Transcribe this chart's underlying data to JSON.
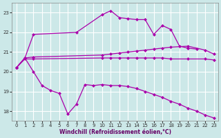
{
  "background_color": "#cce8e8",
  "grid_color": "#ffffff",
  "line_color": "#aa00aa",
  "xlabel": "Windchill (Refroidissement éolien,°C)",
  "xlim": [
    -0.5,
    23.5
  ],
  "ylim": [
    17.5,
    23.5
  ],
  "yticks": [
    18,
    19,
    20,
    21,
    22,
    23
  ],
  "xticks": [
    0,
    1,
    2,
    3,
    4,
    5,
    6,
    7,
    8,
    9,
    10,
    11,
    12,
    13,
    14,
    15,
    16,
    17,
    18,
    19,
    20,
    21,
    22,
    23
  ],
  "series": [
    {
      "x": [
        0,
        1,
        2,
        7,
        10,
        11,
        12,
        13,
        14,
        15,
        16,
        17,
        18,
        19,
        20,
        21
      ],
      "y": [
        20.2,
        20.7,
        21.9,
        22.0,
        22.9,
        23.1,
        22.75,
        22.7,
        22.65,
        22.65,
        21.9,
        22.35,
        22.15,
        21.3,
        21.2,
        21.15
      ]
    },
    {
      "x": [
        0,
        1,
        2,
        10,
        11,
        12,
        13,
        14,
        15,
        16,
        17,
        18,
        20,
        22,
        23
      ],
      "y": [
        20.2,
        20.7,
        20.75,
        20.85,
        20.9,
        20.95,
        21.0,
        21.05,
        21.1,
        21.15,
        21.2,
        21.25,
        21.3,
        21.1,
        20.9
      ]
    },
    {
      "x": [
        0,
        1,
        2,
        10,
        11,
        12,
        13,
        14,
        15,
        16,
        17,
        18,
        20,
        22,
        23
      ],
      "y": [
        20.2,
        20.65,
        20.65,
        20.7,
        20.7,
        20.7,
        20.7,
        20.7,
        20.7,
        20.7,
        20.7,
        20.65,
        20.65,
        20.65,
        20.6
      ]
    },
    {
      "x": [
        0,
        1,
        2,
        3,
        4,
        5,
        6,
        7,
        8,
        9,
        10,
        11,
        12,
        13,
        14,
        15,
        16,
        17,
        18,
        19,
        20,
        21,
        22,
        23
      ],
      "y": [
        20.2,
        20.7,
        20.0,
        19.3,
        19.05,
        18.9,
        17.85,
        18.35,
        19.35,
        19.3,
        19.35,
        19.3,
        19.3,
        19.25,
        19.15,
        19.0,
        18.85,
        18.7,
        18.5,
        18.35,
        18.15,
        18.0,
        17.8,
        17.65
      ]
    }
  ]
}
